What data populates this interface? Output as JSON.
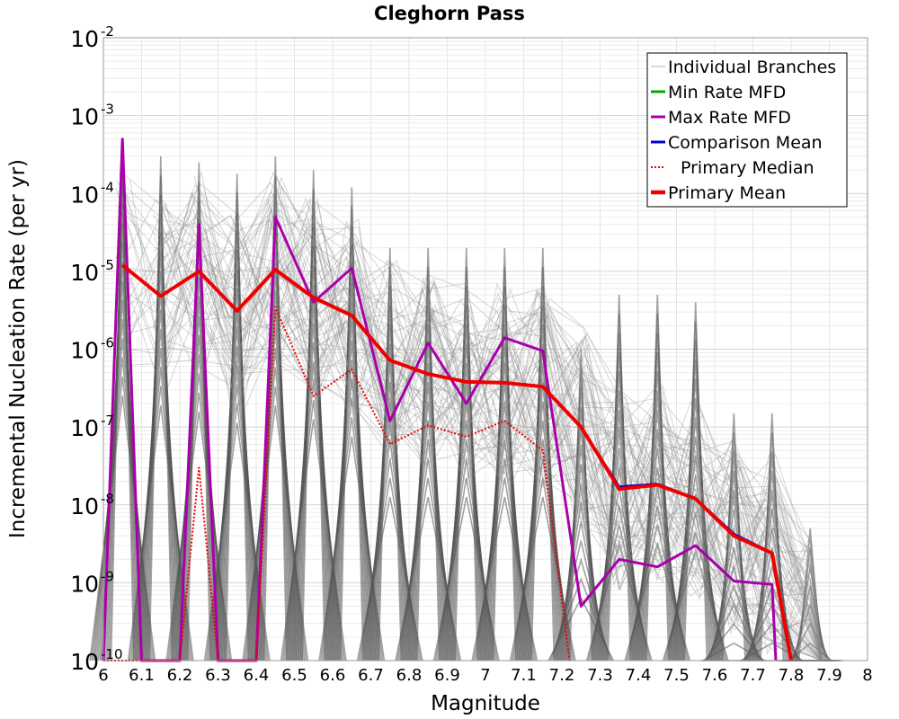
{
  "chart_data": {
    "type": "line",
    "title": "Cleghorn Pass",
    "xlabel": "Magnitude",
    "ylabel": "Incremental Nucleation Rate (per yr)",
    "xlim": [
      6,
      8
    ],
    "ylim": [
      1e-10,
      0.01
    ],
    "yscale": "log",
    "grid": true,
    "legend_position": "top-right",
    "x_ticks": [
      "6",
      "6.1",
      "6.2",
      "6.3",
      "6.4",
      "6.5",
      "6.6",
      "6.7",
      "6.8",
      "6.9",
      "7",
      "7.1",
      "7.2",
      "7.3",
      "7.4",
      "7.5",
      "7.6",
      "7.7",
      "7.8",
      "7.9",
      "8"
    ],
    "y_tick_exponents": [
      "-10",
      "-9",
      "-8",
      "-7",
      "-6",
      "-5",
      "-4",
      "-3",
      "-2"
    ],
    "series": [
      {
        "name": "Individual Branches",
        "color": "#808080",
        "style": "thin",
        "x": [
          6.05,
          6.15,
          6.25,
          6.35,
          6.45,
          6.55,
          6.65,
          6.75,
          6.85,
          6.95,
          7.05,
          7.15,
          7.25,
          7.35,
          7.45,
          7.55,
          7.65,
          7.75,
          7.85
        ],
        "peaks": [
          0.0004,
          0.0003,
          0.00025,
          0.00018,
          0.0003,
          0.0002,
          0.00012,
          2e-05,
          2e-05,
          2e-05,
          2e-05,
          2e-05,
          1e-06,
          5e-06,
          5e-06,
          4e-06,
          1.5e-07,
          1.5e-07,
          5e-09
        ]
      },
      {
        "name": "Min Rate MFD",
        "color": "#00aa00",
        "style": "solid",
        "x": [],
        "y": []
      },
      {
        "name": "Max Rate MFD",
        "color": "#aa00aa",
        "style": "solid",
        "x": [
          6.0,
          6.05,
          6.1,
          6.2,
          6.25,
          6.3,
          6.4,
          6.45,
          6.55,
          6.65,
          6.75,
          6.85,
          6.95,
          7.05,
          7.15,
          7.25,
          7.35,
          7.45,
          7.55,
          7.65,
          7.75,
          7.76
        ],
        "y": [
          1e-10,
          0.0005,
          1e-10,
          1e-10,
          4e-05,
          1e-10,
          1e-10,
          5e-05,
          4e-06,
          1.1e-05,
          1.2e-07,
          1.2e-06,
          2e-07,
          1.4e-06,
          9.5e-07,
          5e-10,
          2e-09,
          1.6e-09,
          3e-09,
          1.05e-09,
          9.5e-10,
          1e-10
        ]
      },
      {
        "name": "Comparison Mean",
        "color": "#0000cc",
        "style": "solid",
        "x": [
          6.05,
          6.15,
          6.25,
          6.35,
          6.45,
          6.55,
          6.65,
          6.75,
          6.85,
          6.95,
          7.05,
          7.15,
          7.25,
          7.35,
          7.45,
          7.55,
          7.65,
          7.75,
          7.8
        ],
        "y": [
          1.2e-05,
          4.8e-06,
          1e-05,
          3.1e-06,
          1.05e-05,
          4.6e-06,
          2.7e-06,
          7.2e-07,
          4.8e-07,
          3.8e-07,
          3.7e-07,
          3.3e-07,
          1e-07,
          1.7e-08,
          1.85e-08,
          1.2e-08,
          4.2e-09,
          2.4e-09,
          1e-10
        ]
      },
      {
        "name": "Primary Median",
        "color": "#ee0000",
        "style": "dotted",
        "x": [
          6.0,
          6.2,
          6.25,
          6.3,
          6.4,
          6.45,
          6.55,
          6.65,
          6.75,
          6.85,
          6.95,
          7.05,
          7.15,
          7.22
        ],
        "y": [
          1e-10,
          1e-10,
          3e-08,
          1e-10,
          1e-10,
          3.5e-06,
          2.5e-07,
          5.5e-07,
          6e-08,
          1.05e-07,
          7.5e-08,
          1.2e-07,
          5e-08,
          1e-10
        ]
      },
      {
        "name": "Primary Mean",
        "color": "#ee0000",
        "style": "thick",
        "x": [
          6.05,
          6.15,
          6.25,
          6.35,
          6.45,
          6.55,
          6.65,
          6.75,
          6.85,
          6.95,
          7.05,
          7.15,
          7.25,
          7.35,
          7.45,
          7.55,
          7.65,
          7.75,
          7.8
        ],
        "y": [
          1.2e-05,
          4.8e-06,
          1e-05,
          3.1e-06,
          1.05e-05,
          4.6e-06,
          2.7e-06,
          7.2e-07,
          4.8e-07,
          3.8e-07,
          3.7e-07,
          3.3e-07,
          1e-07,
          1.6e-08,
          1.8e-08,
          1.2e-08,
          4e-09,
          2.4e-09,
          1e-10
        ]
      }
    ]
  }
}
